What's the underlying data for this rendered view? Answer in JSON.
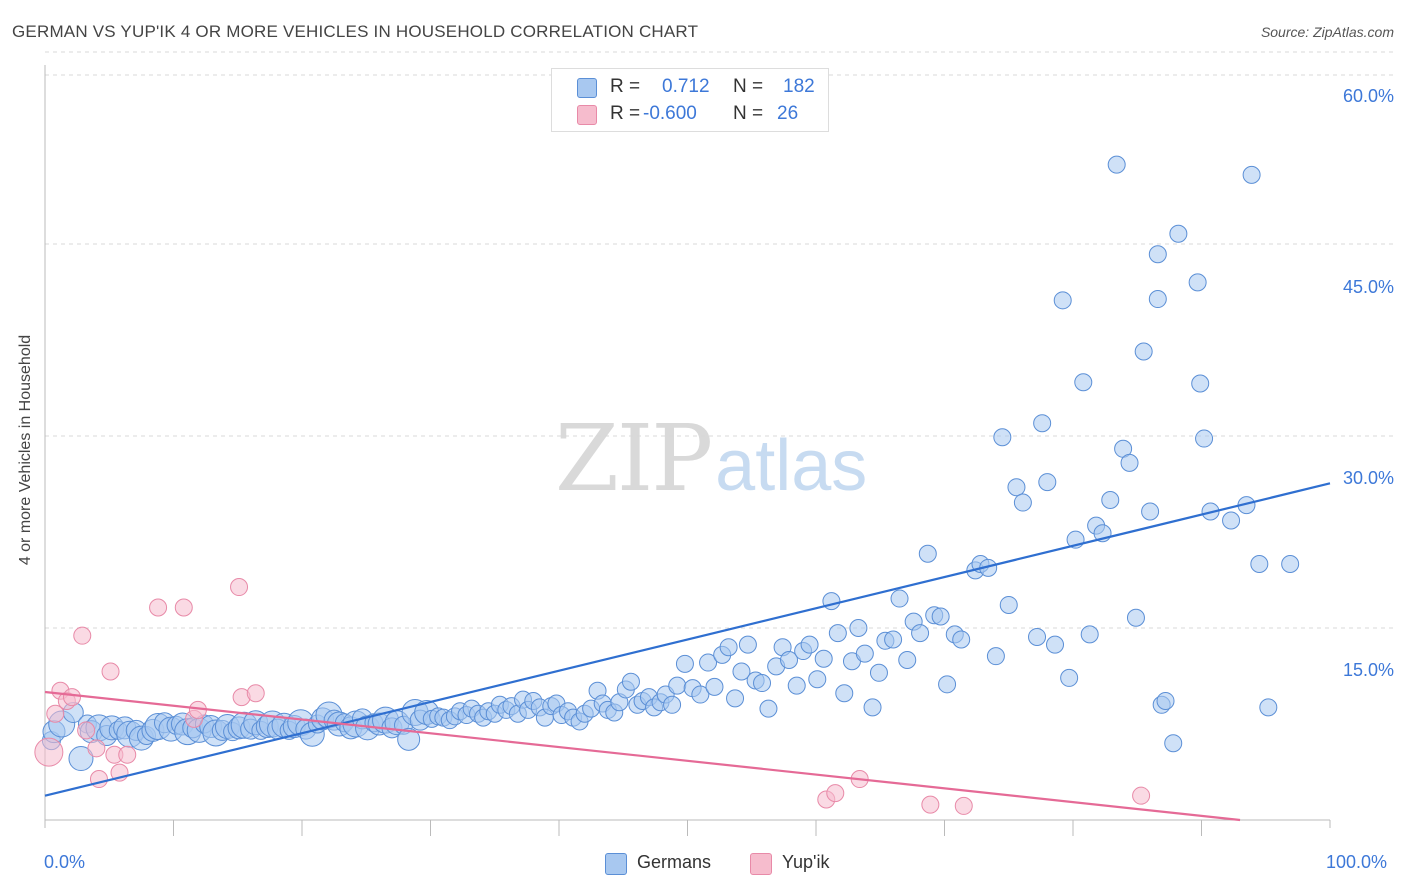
{
  "title": "GERMAN VS YUP'IK 4 OR MORE VEHICLES IN HOUSEHOLD CORRELATION CHART",
  "source": "Source: ZipAtlas.com",
  "watermark": {
    "zip": "ZIP",
    "atlas": "atlas"
  },
  "legend": {
    "r_label": "R =",
    "n_label": "N =",
    "series": [
      {
        "name": "Germans",
        "r": "0.712",
        "n": "182",
        "color": "#a8c8f0",
        "stroke": "#5b8fd6"
      },
      {
        "name": "Yup'ik",
        "r": "-0.600",
        "n": "26",
        "color": "#f6bccd",
        "stroke": "#e88aa8"
      }
    ]
  },
  "chart_data": {
    "type": "scatter",
    "ylabel": "4 or more Vehicles in Household",
    "xlim": [
      0,
      100
    ],
    "ylim": [
      0,
      65
    ],
    "y_ticks": [
      15,
      30,
      45,
      60
    ],
    "y_tick_labels": [
      "15.0%",
      "30.0%",
      "45.0%",
      "60.0%"
    ],
    "x_tick_labels": [
      "0.0%",
      "100.0%"
    ],
    "grid": true,
    "legend_position": "top-center",
    "series": [
      {
        "name": "Germans",
        "color": "#a8c8f0",
        "stroke": "#5b8fd6",
        "trend": {
          "x": [
            0,
            100
          ],
          "y": [
            1.9,
            26.3
          ],
          "color": "#2f6fd0"
        },
        "points": [
          [
            0.5,
            6.2
          ],
          [
            0.7,
            6.9
          ],
          [
            1.3,
            7.5
          ],
          [
            2.2,
            8.4
          ],
          [
            2.8,
            4.8
          ],
          [
            3.3,
            7.5
          ],
          [
            3.6,
            6.9
          ],
          [
            4.2,
            7.2
          ],
          [
            4.8,
            6.6
          ],
          [
            5.2,
            7.2
          ],
          [
            5.7,
            7.0
          ],
          [
            6.2,
            7.2
          ],
          [
            6.6,
            6.7
          ],
          [
            7.1,
            7.0
          ],
          [
            7.5,
            6.4
          ],
          [
            7.9,
            6.6
          ],
          [
            8.4,
            7.0
          ],
          [
            8.8,
            7.3
          ],
          [
            9.3,
            7.6
          ],
          [
            9.8,
            7.1
          ],
          [
            10.2,
            7.4
          ],
          [
            10.7,
            7.5
          ],
          [
            11.1,
            6.9
          ],
          [
            11.5,
            7.2
          ],
          [
            12.0,
            7.0
          ],
          [
            12.4,
            7.5
          ],
          [
            12.9,
            7.3
          ],
          [
            13.3,
            6.8
          ],
          [
            13.8,
            7.0
          ],
          [
            14.2,
            7.3
          ],
          [
            14.6,
            6.9
          ],
          [
            15.1,
            7.2
          ],
          [
            15.5,
            7.4
          ],
          [
            16.0,
            7.1
          ],
          [
            16.4,
            7.6
          ],
          [
            16.8,
            7.0
          ],
          [
            17.3,
            7.3
          ],
          [
            17.7,
            7.5
          ],
          [
            18.1,
            7.1
          ],
          [
            18.6,
            7.4
          ],
          [
            19.0,
            7.0
          ],
          [
            19.4,
            7.3
          ],
          [
            19.9,
            7.6
          ],
          [
            20.3,
            7.1
          ],
          [
            20.8,
            6.7
          ],
          [
            21.2,
            7.5
          ],
          [
            21.6,
            7.9
          ],
          [
            22.1,
            8.2
          ],
          [
            22.5,
            7.8
          ],
          [
            22.9,
            7.5
          ],
          [
            23.3,
            7.6
          ],
          [
            23.8,
            7.2
          ],
          [
            24.2,
            7.5
          ],
          [
            24.7,
            7.9
          ],
          [
            25.1,
            7.2
          ],
          [
            25.6,
            7.6
          ],
          [
            26.0,
            7.5
          ],
          [
            26.5,
            7.8
          ],
          [
            27.0,
            7.2
          ],
          [
            27.4,
            7.6
          ],
          [
            27.9,
            7.4
          ],
          [
            28.3,
            6.3
          ],
          [
            28.8,
            8.4
          ],
          [
            29.2,
            7.8
          ],
          [
            29.7,
            8.4
          ],
          [
            30.1,
            7.9
          ],
          [
            30.6,
            8.1
          ],
          [
            31.0,
            8.0
          ],
          [
            31.5,
            7.8
          ],
          [
            31.9,
            8.1
          ],
          [
            32.3,
            8.5
          ],
          [
            32.8,
            8.2
          ],
          [
            33.2,
            8.7
          ],
          [
            33.7,
            8.3
          ],
          [
            34.1,
            8.0
          ],
          [
            34.5,
            8.5
          ],
          [
            35.0,
            8.3
          ],
          [
            35.4,
            9.0
          ],
          [
            35.9,
            8.6
          ],
          [
            36.3,
            8.9
          ],
          [
            36.8,
            8.3
          ],
          [
            37.2,
            9.4
          ],
          [
            37.6,
            8.6
          ],
          [
            38.0,
            9.3
          ],
          [
            38.5,
            8.8
          ],
          [
            38.9,
            8.0
          ],
          [
            39.4,
            8.9
          ],
          [
            39.8,
            9.1
          ],
          [
            40.2,
            8.2
          ],
          [
            40.7,
            8.5
          ],
          [
            41.1,
            8.0
          ],
          [
            41.6,
            7.7
          ],
          [
            42.0,
            8.3
          ],
          [
            42.5,
            8.7
          ],
          [
            43.0,
            10.1
          ],
          [
            43.4,
            9.1
          ],
          [
            43.8,
            8.6
          ],
          [
            44.3,
            8.4
          ],
          [
            44.7,
            9.2
          ],
          [
            45.2,
            10.2
          ],
          [
            45.6,
            10.8
          ],
          [
            46.1,
            9.0
          ],
          [
            46.5,
            9.3
          ],
          [
            47.0,
            9.6
          ],
          [
            47.4,
            8.8
          ],
          [
            47.9,
            9.2
          ],
          [
            48.3,
            9.8
          ],
          [
            48.8,
            9.0
          ],
          [
            49.2,
            10.5
          ],
          [
            49.8,
            12.2
          ],
          [
            50.4,
            10.3
          ],
          [
            51.0,
            9.8
          ],
          [
            51.6,
            12.3
          ],
          [
            52.1,
            10.4
          ],
          [
            52.7,
            12.9
          ],
          [
            53.2,
            13.5
          ],
          [
            53.7,
            9.5
          ],
          [
            54.2,
            11.6
          ],
          [
            54.7,
            13.7
          ],
          [
            55.3,
            10.9
          ],
          [
            55.8,
            10.7
          ],
          [
            56.3,
            8.7
          ],
          [
            56.9,
            12.0
          ],
          [
            57.4,
            13.5
          ],
          [
            57.9,
            12.5
          ],
          [
            58.5,
            10.5
          ],
          [
            59.0,
            13.2
          ],
          [
            59.5,
            13.7
          ],
          [
            60.1,
            11.0
          ],
          [
            60.6,
            12.6
          ],
          [
            61.2,
            17.1
          ],
          [
            61.7,
            14.6
          ],
          [
            62.2,
            9.9
          ],
          [
            62.8,
            12.4
          ],
          [
            63.3,
            15.0
          ],
          [
            63.8,
            13.0
          ],
          [
            64.4,
            8.8
          ],
          [
            64.9,
            11.5
          ],
          [
            65.4,
            14.0
          ],
          [
            66.0,
            14.1
          ],
          [
            66.5,
            17.3
          ],
          [
            67.1,
            12.5
          ],
          [
            67.6,
            15.5
          ],
          [
            68.1,
            14.6
          ],
          [
            68.7,
            20.8
          ],
          [
            69.2,
            16.0
          ],
          [
            69.7,
            15.9
          ],
          [
            70.2,
            10.6
          ],
          [
            70.8,
            14.5
          ],
          [
            71.3,
            14.1
          ],
          [
            72.4,
            19.5
          ],
          [
            72.8,
            20.0
          ],
          [
            73.4,
            19.7
          ],
          [
            74.0,
            12.8
          ],
          [
            74.5,
            29.9
          ],
          [
            75.0,
            16.8
          ],
          [
            75.6,
            26.0
          ],
          [
            76.1,
            24.8
          ],
          [
            77.2,
            14.3
          ],
          [
            77.6,
            31.0
          ],
          [
            78.0,
            26.4
          ],
          [
            78.6,
            13.7
          ],
          [
            79.2,
            40.6
          ],
          [
            79.7,
            11.1
          ],
          [
            80.2,
            21.9
          ],
          [
            80.8,
            34.2
          ],
          [
            81.3,
            14.5
          ],
          [
            81.8,
            23.0
          ],
          [
            82.3,
            22.4
          ],
          [
            82.9,
            25.0
          ],
          [
            83.4,
            51.2
          ],
          [
            83.9,
            29.0
          ],
          [
            84.4,
            27.9
          ],
          [
            84.9,
            15.8
          ],
          [
            85.5,
            36.6
          ],
          [
            86.0,
            24.1
          ],
          [
            86.6,
            44.2
          ],
          [
            86.9,
            9.0
          ],
          [
            87.2,
            9.3
          ],
          [
            86.6,
            40.7
          ],
          [
            87.8,
            6.0
          ],
          [
            88.2,
            45.8
          ],
          [
            89.7,
            42.0
          ],
          [
            89.9,
            34.1
          ],
          [
            90.2,
            29.8
          ],
          [
            90.7,
            24.1
          ],
          [
            92.3,
            23.4
          ],
          [
            93.5,
            24.6
          ],
          [
            93.9,
            50.4
          ],
          [
            94.5,
            20.0
          ],
          [
            95.2,
            8.8
          ],
          [
            96.9,
            20.0
          ]
        ]
      },
      {
        "name": "Yup'ik",
        "color": "#f6bccd",
        "stroke": "#e88aa8",
        "trend": {
          "x": [
            0,
            93
          ],
          "y": [
            10.0,
            0.0
          ],
          "color": "#e56a96"
        },
        "points": [
          [
            0.3,
            5.3
          ],
          [
            0.8,
            8.3
          ],
          [
            1.2,
            10.1
          ],
          [
            1.7,
            9.3
          ],
          [
            2.1,
            9.6
          ],
          [
            2.9,
            14.4
          ],
          [
            3.2,
            7.0
          ],
          [
            4.0,
            5.6
          ],
          [
            4.2,
            3.2
          ],
          [
            5.1,
            11.6
          ],
          [
            5.4,
            5.1
          ],
          [
            5.8,
            3.7
          ],
          [
            6.4,
            5.1
          ],
          [
            8.8,
            16.6
          ],
          [
            10.8,
            16.6
          ],
          [
            11.6,
            7.9
          ],
          [
            11.9,
            8.6
          ],
          [
            15.3,
            9.6
          ],
          [
            15.1,
            18.2
          ],
          [
            16.4,
            9.9
          ],
          [
            60.8,
            1.6
          ],
          [
            61.5,
            2.1
          ],
          [
            63.4,
            3.2
          ],
          [
            68.9,
            1.2
          ],
          [
            71.5,
            1.1
          ],
          [
            85.3,
            1.9
          ]
        ]
      }
    ]
  }
}
